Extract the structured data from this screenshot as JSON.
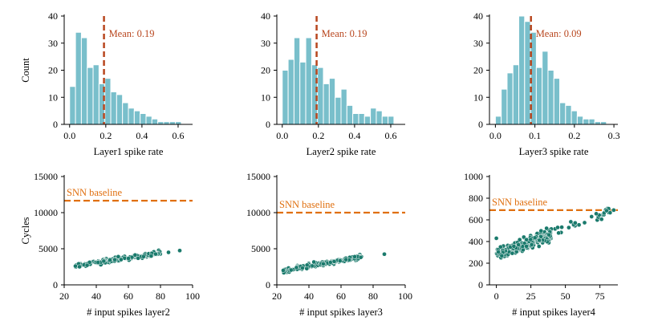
{
  "colors": {
    "bar": "#79bfcb",
    "bar_edge": "#ffffff",
    "mean_line": "#b8461e",
    "baseline": "#e07010",
    "scatter": "#1a7a6c",
    "scatter_edge": "#ffffff"
  },
  "chart_data": [
    {
      "type": "bar",
      "panel": "top-left",
      "xlabel": "Layer1 spike rate",
      "ylabel": "Count",
      "xlim": [
        -0.03,
        0.68
      ],
      "ylim": [
        0,
        40
      ],
      "xticks": [
        0.0,
        0.2,
        0.4,
        0.6
      ],
      "xtick_labels": [
        "0.0",
        "0.2",
        "0.4",
        "0.6"
      ],
      "yticks": [
        0,
        10,
        20,
        30,
        40
      ],
      "ytick_labels": [
        "0",
        "10",
        "20",
        "30",
        "40"
      ],
      "bin_start": 0.0,
      "bin_width": 0.0325,
      "values": [
        14,
        34,
        32,
        21,
        22,
        15,
        17,
        12,
        11,
        8,
        6,
        5,
        4,
        3,
        2,
        1,
        1,
        1,
        1
      ],
      "mean": 0.19,
      "mean_label": "Mean: 0.19"
    },
    {
      "type": "bar",
      "panel": "top-middle",
      "xlabel": "Layer2 spike rate",
      "ylabel": "",
      "xlim": [
        -0.03,
        0.68
      ],
      "ylim": [
        0,
        40
      ],
      "xticks": [
        0.0,
        0.2,
        0.4,
        0.6
      ],
      "xtick_labels": [
        "0.0",
        "0.2",
        "0.4",
        "0.6"
      ],
      "yticks": [
        0,
        10,
        20,
        30,
        40
      ],
      "ytick_labels": [
        "0",
        "10",
        "20",
        "30",
        "40"
      ],
      "bin_start": 0.0,
      "bin_width": 0.0325,
      "values": [
        20,
        24,
        32,
        23,
        32,
        22,
        21,
        15,
        17,
        10,
        13,
        7,
        4,
        4,
        3,
        6,
        5,
        3,
        3
      ],
      "mean": 0.19,
      "mean_label": "Mean: 0.19"
    },
    {
      "type": "bar",
      "panel": "top-right",
      "xlabel": "Layer3 spike rate",
      "ylabel": "",
      "xlim": [
        -0.015,
        0.31
      ],
      "ylim": [
        0,
        40
      ],
      "xticks": [
        0.0,
        0.1,
        0.2,
        0.3
      ],
      "xtick_labels": [
        "0.0",
        "0.1",
        "0.2",
        "0.3"
      ],
      "yticks": [
        0,
        10,
        20,
        30,
        40
      ],
      "ytick_labels": [
        "0",
        "10",
        "20",
        "30",
        "40"
      ],
      "bin_start": 0.0,
      "bin_width": 0.0148,
      "values": [
        3,
        13,
        19,
        22,
        40,
        38,
        34,
        21,
        27,
        20,
        17,
        8,
        7,
        5,
        3,
        2,
        2,
        1,
        1
      ],
      "mean": 0.09,
      "mean_label": "Mean: 0.09"
    },
    {
      "type": "scatter",
      "panel": "bottom-left",
      "xlabel": "# input spikes layer2",
      "ylabel": "Cycles",
      "xlim": [
        20,
        100
      ],
      "ylim": [
        0,
        15000
      ],
      "xticks": [
        20,
        40,
        60,
        80,
        100
      ],
      "xtick_labels": [
        "20",
        "40",
        "60",
        "80",
        "100"
      ],
      "yticks": [
        0,
        5000,
        10000,
        15000
      ],
      "ytick_labels": [
        "0",
        "5000",
        "10000",
        "15000"
      ],
      "baseline": 11650,
      "baseline_label": "SNN baseline",
      "trend": {
        "x0": 27,
        "x1": 80,
        "y0": 2600,
        "y1": 4450,
        "spread": 160
      },
      "points_count": 150,
      "extra_points": [
        [
          85,
          4500
        ],
        [
          92,
          4750
        ],
        [
          27,
          2600
        ]
      ]
    },
    {
      "type": "scatter",
      "panel": "bottom-middle",
      "xlabel": "# input spikes layer3",
      "ylabel": "",
      "xlim": [
        20,
        100
      ],
      "ylim": [
        0,
        15000
      ],
      "xticks": [
        20,
        40,
        60,
        80,
        100
      ],
      "xtick_labels": [
        "20",
        "40",
        "60",
        "80",
        "100"
      ],
      "yticks": [
        0,
        5000,
        10000,
        15000
      ],
      "ytick_labels": [
        "0",
        "5000",
        "10000",
        "15000"
      ],
      "baseline": 10000,
      "baseline_label": "SNN baseline",
      "trend": {
        "x0": 24,
        "x1": 73,
        "y0": 2000,
        "y1": 3900,
        "spread": 160
      },
      "points_count": 150,
      "extra_points": [
        [
          87,
          4250
        ],
        [
          24,
          2000
        ]
      ]
    },
    {
      "type": "scatter",
      "panel": "bottom-right",
      "xlabel": "# input spikes layer4",
      "ylabel": "",
      "xlim": [
        -5,
        88
      ],
      "ylim": [
        0,
        1000
      ],
      "xticks": [
        0,
        25,
        50,
        75
      ],
      "xtick_labels": [
        "0",
        "25",
        "50",
        "75"
      ],
      "yticks": [
        0,
        200,
        400,
        600,
        800,
        1000
      ],
      "ytick_labels": [
        "0",
        "200",
        "400",
        "600",
        "800",
        "1000"
      ],
      "baseline": 690,
      "baseline_label": "SNN baseline",
      "trend": {
        "x0": 0,
        "x1": 85,
        "y0": 275,
        "y1": 690,
        "spread": 28
      },
      "points_count": 260,
      "dense_until": 40,
      "extra_points": [
        [
          0,
          430
        ],
        [
          3,
          350
        ],
        [
          85,
          690
        ]
      ]
    }
  ]
}
